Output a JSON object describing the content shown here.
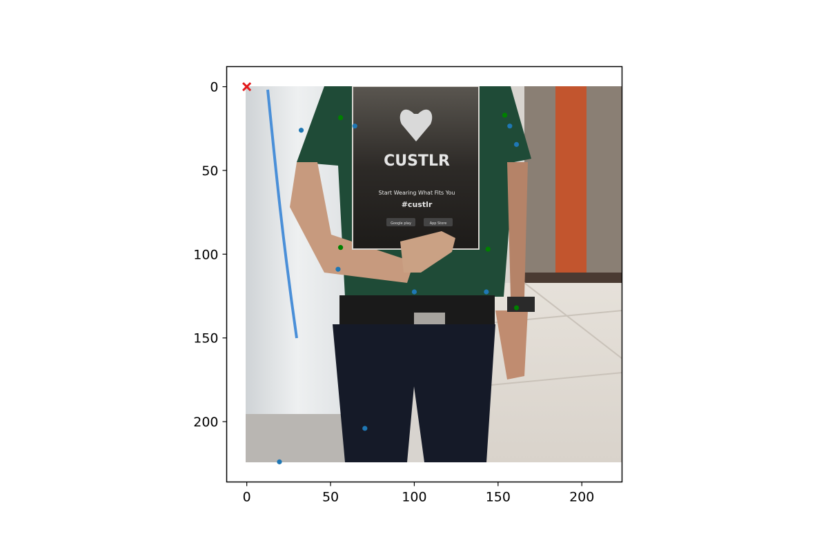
{
  "chart_data": {
    "type": "scatter",
    "title": "",
    "xlabel": "",
    "ylabel": "",
    "xlim": [
      -12,
      224
    ],
    "ylim": [
      236,
      -12
    ],
    "y_inverted": true,
    "grid": false,
    "legend": "none",
    "x_ticks": [
      0,
      50,
      100,
      150,
      200
    ],
    "y_ticks": [
      0,
      50,
      100,
      150,
      200
    ],
    "x_tick_labels": [
      "0",
      "50",
      "100",
      "150",
      "200"
    ],
    "y_tick_labels": [
      "0",
      "50",
      "100",
      "150",
      "200"
    ],
    "background_image": {
      "description_extent": [
        0,
        224,
        224,
        0
      ],
      "poster_text": {
        "brand": "CUSTLR",
        "tagline": "Start Wearing What Fits You",
        "hashtag": "#custlr",
        "store_badges": [
          "Google play",
          "App Store"
        ]
      }
    },
    "series": [
      {
        "marker": "dot",
        "color": "#1f77b4",
        "points": [
          [
            32.5,
            26
          ],
          [
            64.5,
            23.5
          ],
          [
            157,
            23.5
          ],
          [
            161,
            34.5
          ],
          [
            54.5,
            109
          ],
          [
            100,
            122.5
          ],
          [
            143,
            122.5
          ],
          [
            70.5,
            204
          ],
          [
            19.5,
            224
          ]
        ]
      },
      {
        "marker": "dot",
        "color": "#008000",
        "points": [
          [
            56,
            18.5
          ],
          [
            154,
            17
          ],
          [
            56,
            96
          ],
          [
            144,
            97
          ],
          [
            161,
            132
          ]
        ]
      },
      {
        "marker": "x",
        "color": "#e31a1c",
        "points": [
          [
            0,
            0
          ]
        ]
      }
    ]
  }
}
